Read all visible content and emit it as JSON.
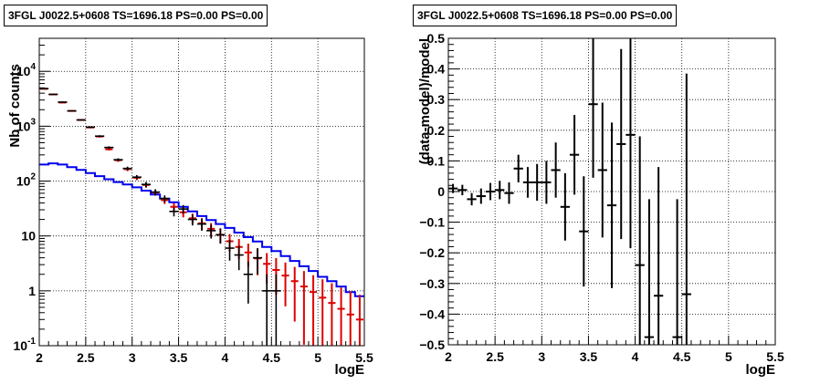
{
  "chart_data": [
    {
      "type": "scatter",
      "title": "3FGL J0022.5+0608 TS=1696.18 PS=0.00 PS=0.00",
      "xlabel": "logE",
      "ylabel": "Nb of counts",
      "xlim": [
        2,
        5.5
      ],
      "ylim": [
        0.1,
        40000
      ],
      "yscale": "log",
      "grid": true,
      "xticks": [
        "2",
        "2.5",
        "3",
        "3.5",
        "4",
        "4.5",
        "5",
        "5.5"
      ],
      "yticks": [
        {
          "v": 0.1,
          "label": "10",
          "exp": "-1"
        },
        {
          "v": 1,
          "label": "1",
          "exp": ""
        },
        {
          "v": 10,
          "label": "10",
          "exp": ""
        },
        {
          "v": 100,
          "label": "10",
          "exp": "2"
        },
        {
          "v": 1000,
          "label": "10",
          "exp": "3"
        },
        {
          "v": 10000,
          "label": "10",
          "exp": "4"
        }
      ],
      "colors": {
        "data": "#000000",
        "model_points": "#dd0000",
        "model_line": "#0000ee"
      },
      "x": [
        2.05,
        2.15,
        2.25,
        2.35,
        2.45,
        2.55,
        2.65,
        2.75,
        2.85,
        2.95,
        3.05,
        3.15,
        3.25,
        3.35,
        3.45,
        3.55,
        3.65,
        3.75,
        3.85,
        3.95,
        4.05,
        4.15,
        4.25,
        4.35,
        4.45,
        4.55,
        4.65,
        4.75,
        4.85,
        4.95,
        5.05,
        5.15,
        5.25,
        5.35,
        5.45
      ],
      "series": [
        {
          "role": "model_points",
          "values": [
            4800,
            3800,
            2700,
            1900,
            1300,
            950,
            650,
            380,
            240,
            165,
            115,
            85,
            62,
            45,
            34,
            27,
            21,
            17,
            13.5,
            10.5,
            8,
            6.3,
            5,
            3.9,
            3.1,
            2.4,
            1.9,
            1.5,
            1.2,
            0.95,
            0.75,
            0.6,
            0.47,
            0.37,
            0.3
          ]
        },
        {
          "role": "model_line",
          "values": [
            200,
            210,
            200,
            180,
            160,
            140,
            123,
            108,
            96,
            87,
            77,
            67,
            57,
            48,
            41,
            34,
            28,
            23,
            19.5,
            16.5,
            14,
            11.5,
            9.5,
            7.9,
            6.3,
            5.3,
            4.3,
            3.5,
            2.8,
            2.3,
            1.8,
            1.5,
            1.2,
            0.95,
            0.8
          ]
        },
        {
          "role": "data",
          "values": [
            4850,
            3800,
            2750,
            1900,
            1300,
            960,
            660,
            410,
            245,
            170,
            118,
            87,
            63,
            48,
            28,
            31,
            20,
            16.5,
            12.5,
            10.5,
            6,
            4.5,
            2,
            4,
            1,
            1
          ]
        }
      ]
    },
    {
      "type": "scatter",
      "title": "3FGL J0022.5+0608 TS=1696.18 PS=0.00 PS=0.00",
      "xlabel": "logE",
      "ylabel": "(data-model)/model",
      "xlim": [
        2,
        5.5
      ],
      "ylim": [
        -0.5,
        0.5
      ],
      "grid": true,
      "xticks": [
        "2",
        "2.5",
        "3",
        "3.5",
        "4",
        "4.5",
        "5",
        "5.5"
      ],
      "yticks": [
        "−0.5",
        "−0.4",
        "−0.3",
        "−0.2",
        "−0.1",
        "0",
        "0.1",
        "0.2",
        "0.3",
        "0.4",
        "0.5"
      ],
      "color": "#000000",
      "x": [
        2.05,
        2.15,
        2.25,
        2.35,
        2.45,
        2.55,
        2.65,
        2.75,
        2.85,
        2.95,
        3.05,
        3.15,
        3.25,
        3.35,
        3.45,
        3.55,
        3.65,
        3.75,
        3.85,
        3.95,
        4.05,
        4.15,
        4.25,
        4.45,
        4.55
      ],
      "y": [
        0.01,
        0.005,
        -0.025,
        -0.015,
        0.0,
        0.005,
        -0.005,
        0.075,
        0.03,
        0.03,
        0.03,
        0.07,
        -0.05,
        0.12,
        -0.13,
        0.285,
        0.07,
        -0.045,
        0.155,
        0.185,
        -0.24,
        -0.475,
        -0.34,
        -0.475,
        -0.335
      ],
      "err": [
        0.015,
        0.017,
        0.02,
        0.025,
        0.028,
        0.03,
        0.035,
        0.045,
        0.05,
        0.06,
        0.07,
        0.09,
        0.11,
        0.13,
        0.18,
        0.24,
        0.22,
        0.27,
        0.31,
        0.37,
        0.42,
        0.45,
        0.42,
        0.45,
        0.72
      ]
    }
  ]
}
